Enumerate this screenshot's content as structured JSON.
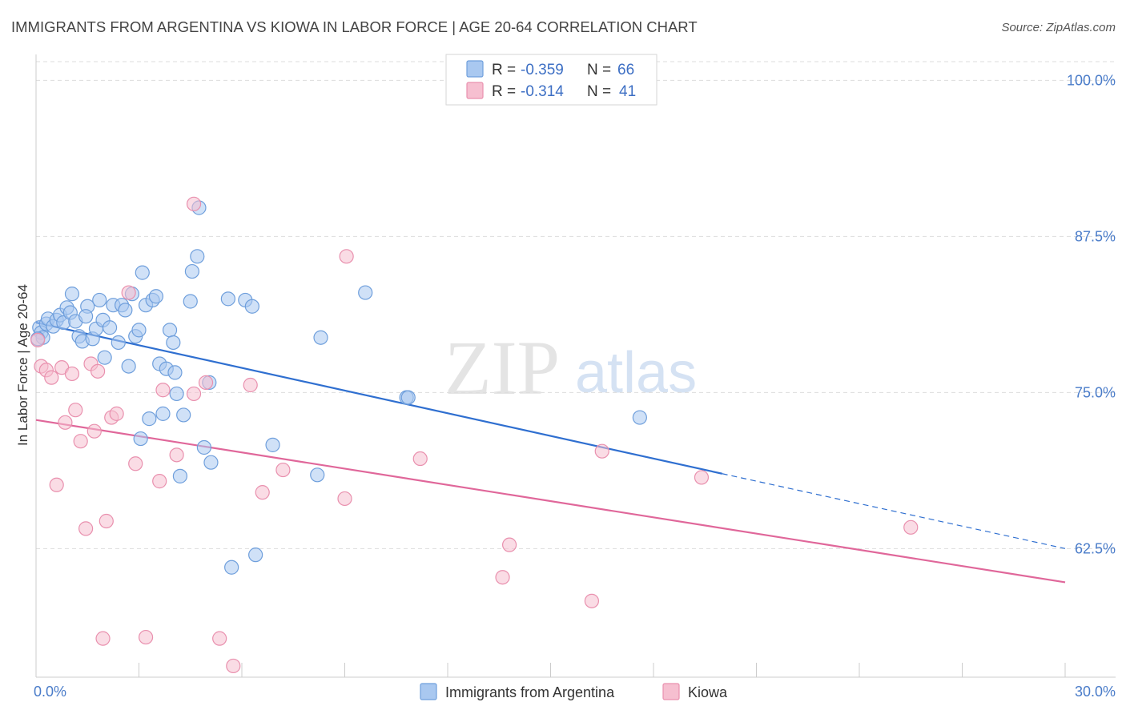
{
  "header": {
    "title": "IMMIGRANTS FROM ARGENTINA VS KIOWA IN LABOR FORCE | AGE 20-64 CORRELATION CHART",
    "source": "Source: ZipAtlas.com"
  },
  "watermark": {
    "zip": "ZIP",
    "atlas": "atlas"
  },
  "colors": {
    "blue_fill": "#a9c8f0",
    "blue_stroke": "#6f9fdc",
    "blue_line": "#2f6fd0",
    "pink_fill": "#f6bfd0",
    "pink_stroke": "#e990ae",
    "pink_line": "#e0679a",
    "grid": "#dddddd",
    "tick_text": "#4a7cc9"
  },
  "legend": {
    "rows": [
      {
        "r_label": "R = ",
        "r_value": "-0.359",
        "n_label": "N = ",
        "n_value": "66"
      },
      {
        "r_label": "R = ",
        "r_value": "-0.314",
        "n_label": "N = ",
        "n_value": "41"
      }
    ]
  },
  "chart_data": {
    "type": "scatter",
    "title": "IMMIGRANTS FROM ARGENTINA VS KIOWA IN LABOR FORCE | AGE 20-64 CORRELATION CHART",
    "xlabel": "",
    "ylabel": "In Labor Force | Age 20-64",
    "xlim": [
      0,
      30
    ],
    "ylim": [
      52.2,
      101.5
    ],
    "x_tick_labels": [
      "0.0%",
      "30.0%"
    ],
    "y_ticks": [
      62.5,
      75.0,
      87.5,
      100.0
    ],
    "y_tick_labels": [
      "62.5%",
      "75.0%",
      "87.5%",
      "100.0%"
    ],
    "grid": true,
    "legend_position": "bottom-center",
    "series": [
      {
        "name": "Immigrants from Argentina",
        "color": "#a9c8f0",
        "trend": {
          "x0": 0.0,
          "y0": 80.6,
          "x1": 20.0,
          "y1": 68.5,
          "dash_to_x": 30.0,
          "dash_to_y": 62.5
        },
        "points": [
          [
            0.1,
            80.2
          ],
          [
            0.15,
            79.8
          ],
          [
            0.2,
            79.4
          ],
          [
            0.3,
            80.5
          ],
          [
            0.35,
            80.9
          ],
          [
            0.5,
            80.3
          ],
          [
            0.6,
            80.8
          ],
          [
            0.7,
            81.2
          ],
          [
            0.8,
            80.6
          ],
          [
            0.9,
            81.8
          ],
          [
            1.0,
            81.4
          ],
          [
            1.05,
            82.9
          ],
          [
            1.15,
            80.7
          ],
          [
            1.25,
            79.5
          ],
          [
            1.35,
            79.1
          ],
          [
            1.5,
            81.9
          ],
          [
            1.65,
            79.3
          ],
          [
            1.75,
            80.1
          ],
          [
            1.85,
            82.4
          ],
          [
            1.95,
            80.8
          ],
          [
            2.0,
            77.8
          ],
          [
            2.15,
            80.2
          ],
          [
            2.25,
            82.0
          ],
          [
            2.4,
            79.0
          ],
          [
            2.5,
            82.0
          ],
          [
            2.6,
            81.6
          ],
          [
            2.7,
            77.1
          ],
          [
            2.8,
            82.9
          ],
          [
            2.9,
            79.5
          ],
          [
            3.0,
            80.0
          ],
          [
            3.05,
            71.3
          ],
          [
            3.1,
            84.6
          ],
          [
            3.2,
            82.0
          ],
          [
            3.3,
            72.9
          ],
          [
            3.4,
            82.4
          ],
          [
            3.5,
            82.7
          ],
          [
            3.6,
            77.3
          ],
          [
            3.7,
            73.3
          ],
          [
            3.8,
            76.9
          ],
          [
            3.9,
            80.0
          ],
          [
            4.0,
            79.0
          ],
          [
            4.05,
            76.6
          ],
          [
            4.1,
            74.9
          ],
          [
            4.2,
            68.3
          ],
          [
            4.3,
            73.2
          ],
          [
            4.5,
            82.3
          ],
          [
            4.55,
            84.7
          ],
          [
            4.7,
            85.9
          ],
          [
            4.75,
            89.8
          ],
          [
            4.9,
            70.6
          ],
          [
            5.05,
            75.8
          ],
          [
            5.1,
            69.4
          ],
          [
            5.6,
            82.5
          ],
          [
            5.7,
            61.0
          ],
          [
            6.1,
            82.4
          ],
          [
            6.3,
            81.9
          ],
          [
            6.4,
            62.0
          ],
          [
            6.9,
            70.8
          ],
          [
            8.2,
            68.4
          ],
          [
            8.3,
            79.4
          ],
          [
            9.6,
            83.0
          ],
          [
            10.8,
            74.6
          ],
          [
            10.85,
            74.6
          ],
          [
            17.6,
            73.0
          ],
          [
            0.05,
            79.3
          ],
          [
            1.45,
            81.1
          ]
        ]
      },
      {
        "name": "Kiowa",
        "color": "#f6bfd0",
        "trend": {
          "x0": 0.0,
          "y0": 72.8,
          "x1": 30.0,
          "y1": 59.8
        },
        "points": [
          [
            0.05,
            79.2
          ],
          [
            0.15,
            77.1
          ],
          [
            0.3,
            76.8
          ],
          [
            0.45,
            76.2
          ],
          [
            0.6,
            67.6
          ],
          [
            0.75,
            77.0
          ],
          [
            0.85,
            72.6
          ],
          [
            1.05,
            76.5
          ],
          [
            1.15,
            73.6
          ],
          [
            1.3,
            71.1
          ],
          [
            1.45,
            64.1
          ],
          [
            1.6,
            77.3
          ],
          [
            1.7,
            71.9
          ],
          [
            1.8,
            76.7
          ],
          [
            1.95,
            55.3
          ],
          [
            2.05,
            64.7
          ],
          [
            2.2,
            73.0
          ],
          [
            2.35,
            73.3
          ],
          [
            2.7,
            83.0
          ],
          [
            2.9,
            69.3
          ],
          [
            3.2,
            55.4
          ],
          [
            3.6,
            67.9
          ],
          [
            3.7,
            75.2
          ],
          [
            4.1,
            70.0
          ],
          [
            4.6,
            74.9
          ],
          [
            4.6,
            90.1
          ],
          [
            4.95,
            75.8
          ],
          [
            5.35,
            55.3
          ],
          [
            5.75,
            53.1
          ],
          [
            6.25,
            75.6
          ],
          [
            6.6,
            67.0
          ],
          [
            7.2,
            68.8
          ],
          [
            9.0,
            66.5
          ],
          [
            9.05,
            85.9
          ],
          [
            11.2,
            69.7
          ],
          [
            13.6,
            60.2
          ],
          [
            13.8,
            62.8
          ],
          [
            16.2,
            58.3
          ],
          [
            16.5,
            70.3
          ],
          [
            19.4,
            68.2
          ],
          [
            25.5,
            64.2
          ]
        ]
      }
    ]
  }
}
